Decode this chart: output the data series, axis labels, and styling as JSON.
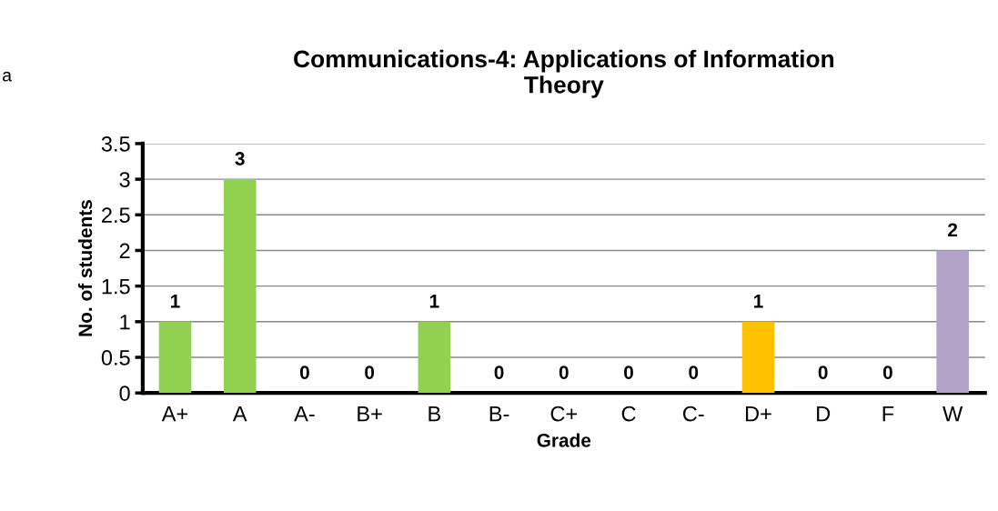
{
  "chart_data": {
    "type": "bar",
    "title": "Communications-4: Applications of Information\nTheory",
    "xlabel": "Grade",
    "ylabel": "No. of students",
    "categories": [
      "A+",
      "A",
      "A-",
      "B+",
      "B",
      "B-",
      "C+",
      "C",
      "C-",
      "D+",
      "D",
      "F",
      "W"
    ],
    "values": [
      1,
      3,
      0,
      0,
      1,
      0,
      0,
      0,
      0,
      1,
      0,
      0,
      2
    ],
    "colors": [
      "#92d050",
      "#92d050",
      "#92d050",
      "#92d050",
      "#92d050",
      "#92d050",
      "#92d050",
      "#92d050",
      "#92d050",
      "#ffc000",
      "#ffc000",
      "#ffc000",
      "#b3a2c7"
    ],
    "ylim": [
      0,
      3.5
    ],
    "yticks": [
      0,
      0.5,
      1,
      1.5,
      2,
      2.5,
      3,
      3.5
    ],
    "grid": "y",
    "data_labels": true,
    "annotations": [
      "a"
    ]
  }
}
